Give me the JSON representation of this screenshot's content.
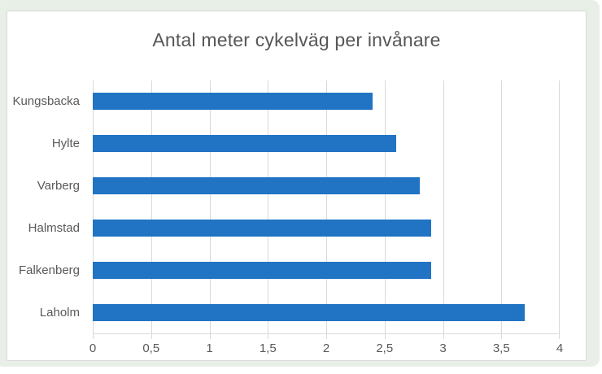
{
  "chart_data": {
    "type": "bar",
    "orientation": "horizontal",
    "title": "Antal meter cykelväg per invånare",
    "categories": [
      "Kungsbacka",
      "Hylte",
      "Varberg",
      "Halmstad",
      "Falkenberg",
      "Laholm"
    ],
    "values": [
      2.4,
      2.6,
      2.8,
      2.9,
      2.9,
      3.7
    ],
    "x_ticks": [
      "0",
      "0,5",
      "1",
      "1,5",
      "2",
      "2,5",
      "3",
      "3,5",
      "4"
    ],
    "x_tick_values": [
      0,
      0.5,
      1,
      1.5,
      2,
      2.5,
      3,
      3.5,
      4
    ],
    "xlim": [
      0,
      4
    ],
    "xlabel": "",
    "ylabel": "",
    "grid": true,
    "legend": false,
    "colors": {
      "bar": "#2173c4",
      "gridline": "#d9d9d9",
      "axis_text": "#595959",
      "title_text": "#565656",
      "frame_background": "#e7efe7",
      "card_background": "#ffffff",
      "card_border": "#d7dad6"
    }
  }
}
